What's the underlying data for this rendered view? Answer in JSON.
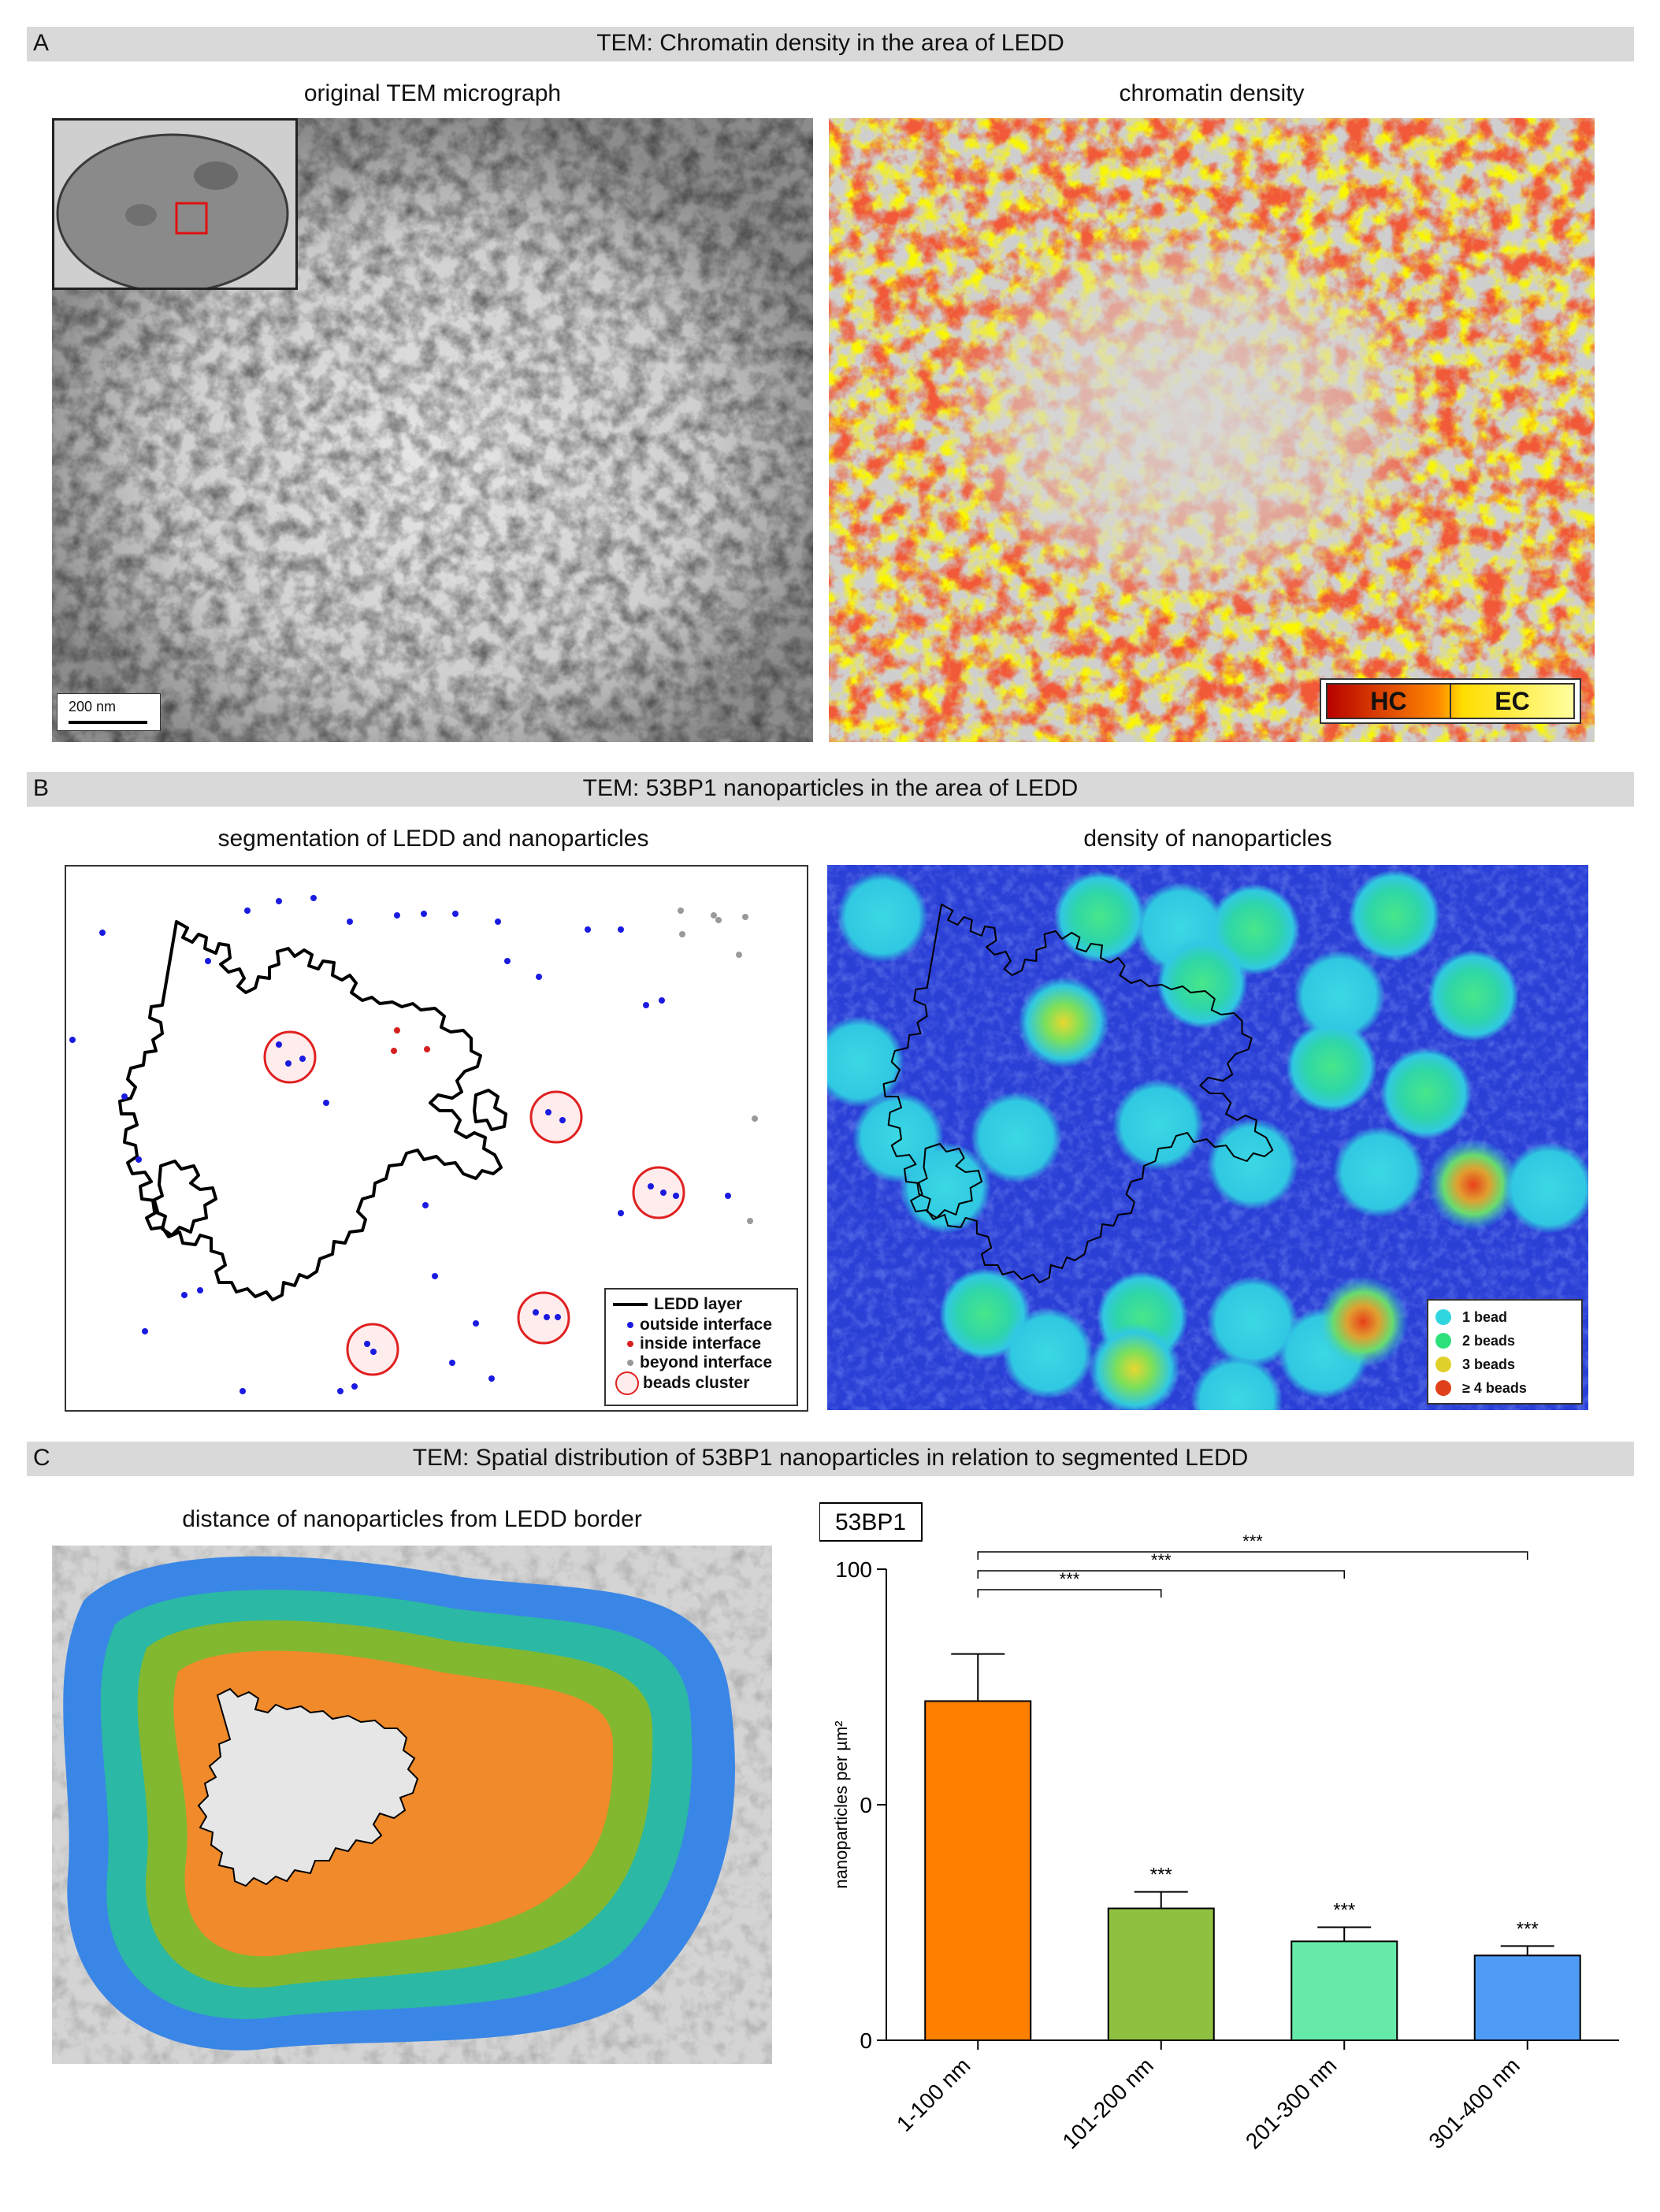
{
  "panels": {
    "A": {
      "label": "A",
      "title": "TEM: Chromatin density in the area of LEDD",
      "left_title": "original TEM micrograph",
      "right_title": "chromatin density",
      "scale_bar": "200 nm",
      "legend_hc": "HC",
      "legend_ec": "EC"
    },
    "B": {
      "label": "B",
      "title": "TEM: 53BP1 nanoparticles in the area of LEDD",
      "left_title": "segmentation of LEDD  and nanoparticles",
      "right_title": "density of nanoparticles",
      "legend_left": [
        "LEDD layer",
        "outside interface",
        "inside interface",
        "beyond interface",
        "beads cluster"
      ],
      "legend_right": [
        "1 bead",
        "2 beads",
        "3 beads",
        "≥ 4 beads"
      ]
    },
    "C": {
      "label": "C",
      "title": "TEM: Spatial distribution of 53BP1 nanoparticles in relation to segmented LEDD",
      "left_title": "distance of nanoparticles from LEDD  border"
    }
  },
  "colors": {
    "section_bar": "#d9d9d9",
    "hc": "#e01a0a",
    "ec": "#f5f500",
    "blue_bg": "#2a3fd6",
    "one_bead": "#2fd6e0",
    "two_beads": "#2ee07a",
    "three_beads": "#e0d02a",
    "four_beads": "#e0401a",
    "inside_dot": "#d62020",
    "outside_dot": "#1a1ae0",
    "beyond_dot": "#999999"
  },
  "chart_data": {
    "type": "bar",
    "title": "53BP1",
    "ylabel": "nanoparticles per µm²",
    "categories": [
      "1-100 nm",
      "101-200 nm",
      "201-300 nm",
      "301-400 nm"
    ],
    "values": [
      72,
      28,
      21,
      18
    ],
    "errors": [
      10,
      3.5,
      3.0,
      2.0
    ],
    "yticks": [
      "0",
      "0",
      "100"
    ],
    "ylim": [
      0,
      100
    ],
    "bar_colors": [
      "#ff7f00",
      "#8fc040",
      "#66eaaa",
      "#4f9cf7"
    ],
    "significance_above_bars": [
      "",
      "***",
      "***",
      "***"
    ],
    "brackets": [
      {
        "from": 0,
        "to": 1,
        "label": "***"
      },
      {
        "from": 0,
        "to": 2,
        "label": "***"
      },
      {
        "from": 0,
        "to": 3,
        "label": "***"
      }
    ]
  }
}
